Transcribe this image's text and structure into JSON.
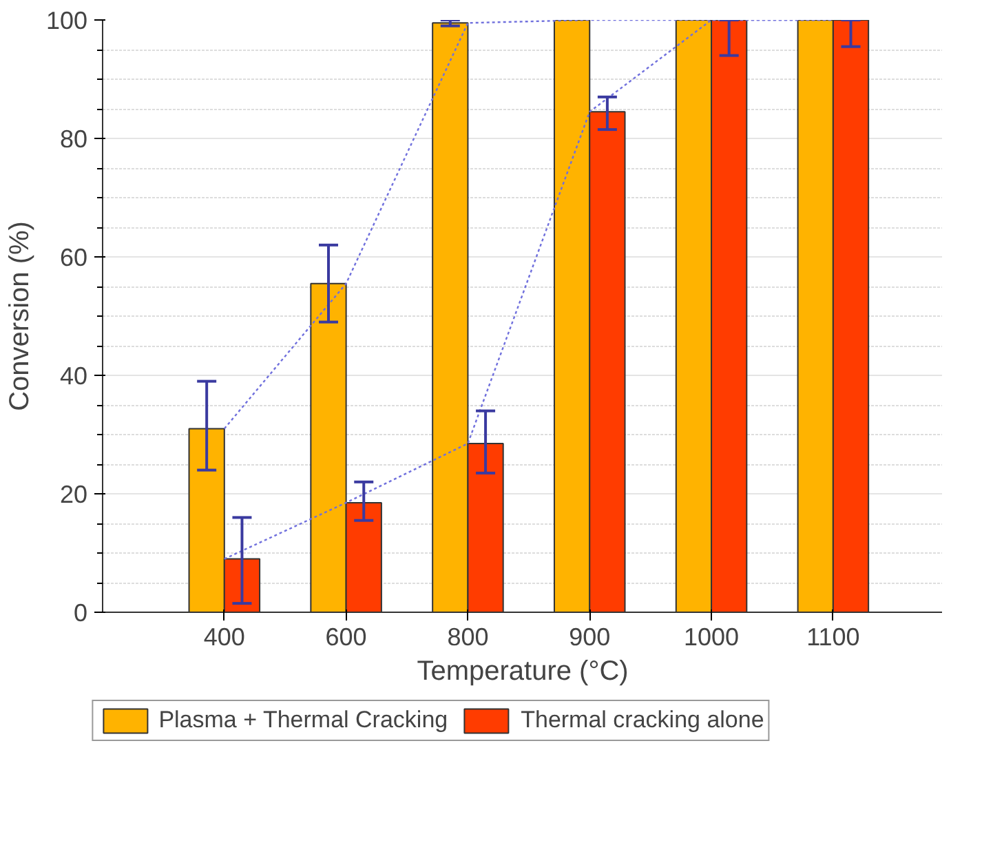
{
  "chart_data": {
    "type": "bar",
    "xlabel": "Temperature (°C)",
    "ylabel": "Conversion (%)",
    "categories": [
      "400",
      "600",
      "800",
      "900",
      "1000",
      "1100"
    ],
    "ylim": [
      0,
      100
    ],
    "yticks": [
      0,
      20,
      40,
      60,
      80,
      100
    ],
    "grid": true,
    "legend": "bottom",
    "series": [
      {
        "name": "Plasma + Thermal Cracking",
        "color": "#ffb300",
        "values": [
          31,
          55.5,
          99.5,
          100,
          100,
          100
        ],
        "errors": [
          [
            24,
            39
          ],
          [
            49,
            62
          ],
          [
            99,
            100
          ],
          null,
          null,
          null
        ]
      },
      {
        "name": "Thermal cracking alone",
        "color": "#ff3c00",
        "values": [
          9,
          18.5,
          28.5,
          84.5,
          100,
          100
        ],
        "errors": [
          [
            1.5,
            16
          ],
          [
            15.5,
            22
          ],
          [
            23.5,
            34
          ],
          [
            81.5,
            87
          ],
          [
            94,
            100
          ],
          [
            95.5,
            100
          ]
        ]
      },
      {
        "type": "line",
        "color": "#7070dd",
        "line_style": "dotted",
        "values": [
          31,
          55.5,
          99.5,
          100,
          100,
          100
        ]
      },
      {
        "type": "line",
        "color": "#7070dd",
        "line_style": "dotted",
        "values": [
          9,
          18.5,
          28.5,
          84.5,
          100,
          100
        ]
      }
    ]
  }
}
